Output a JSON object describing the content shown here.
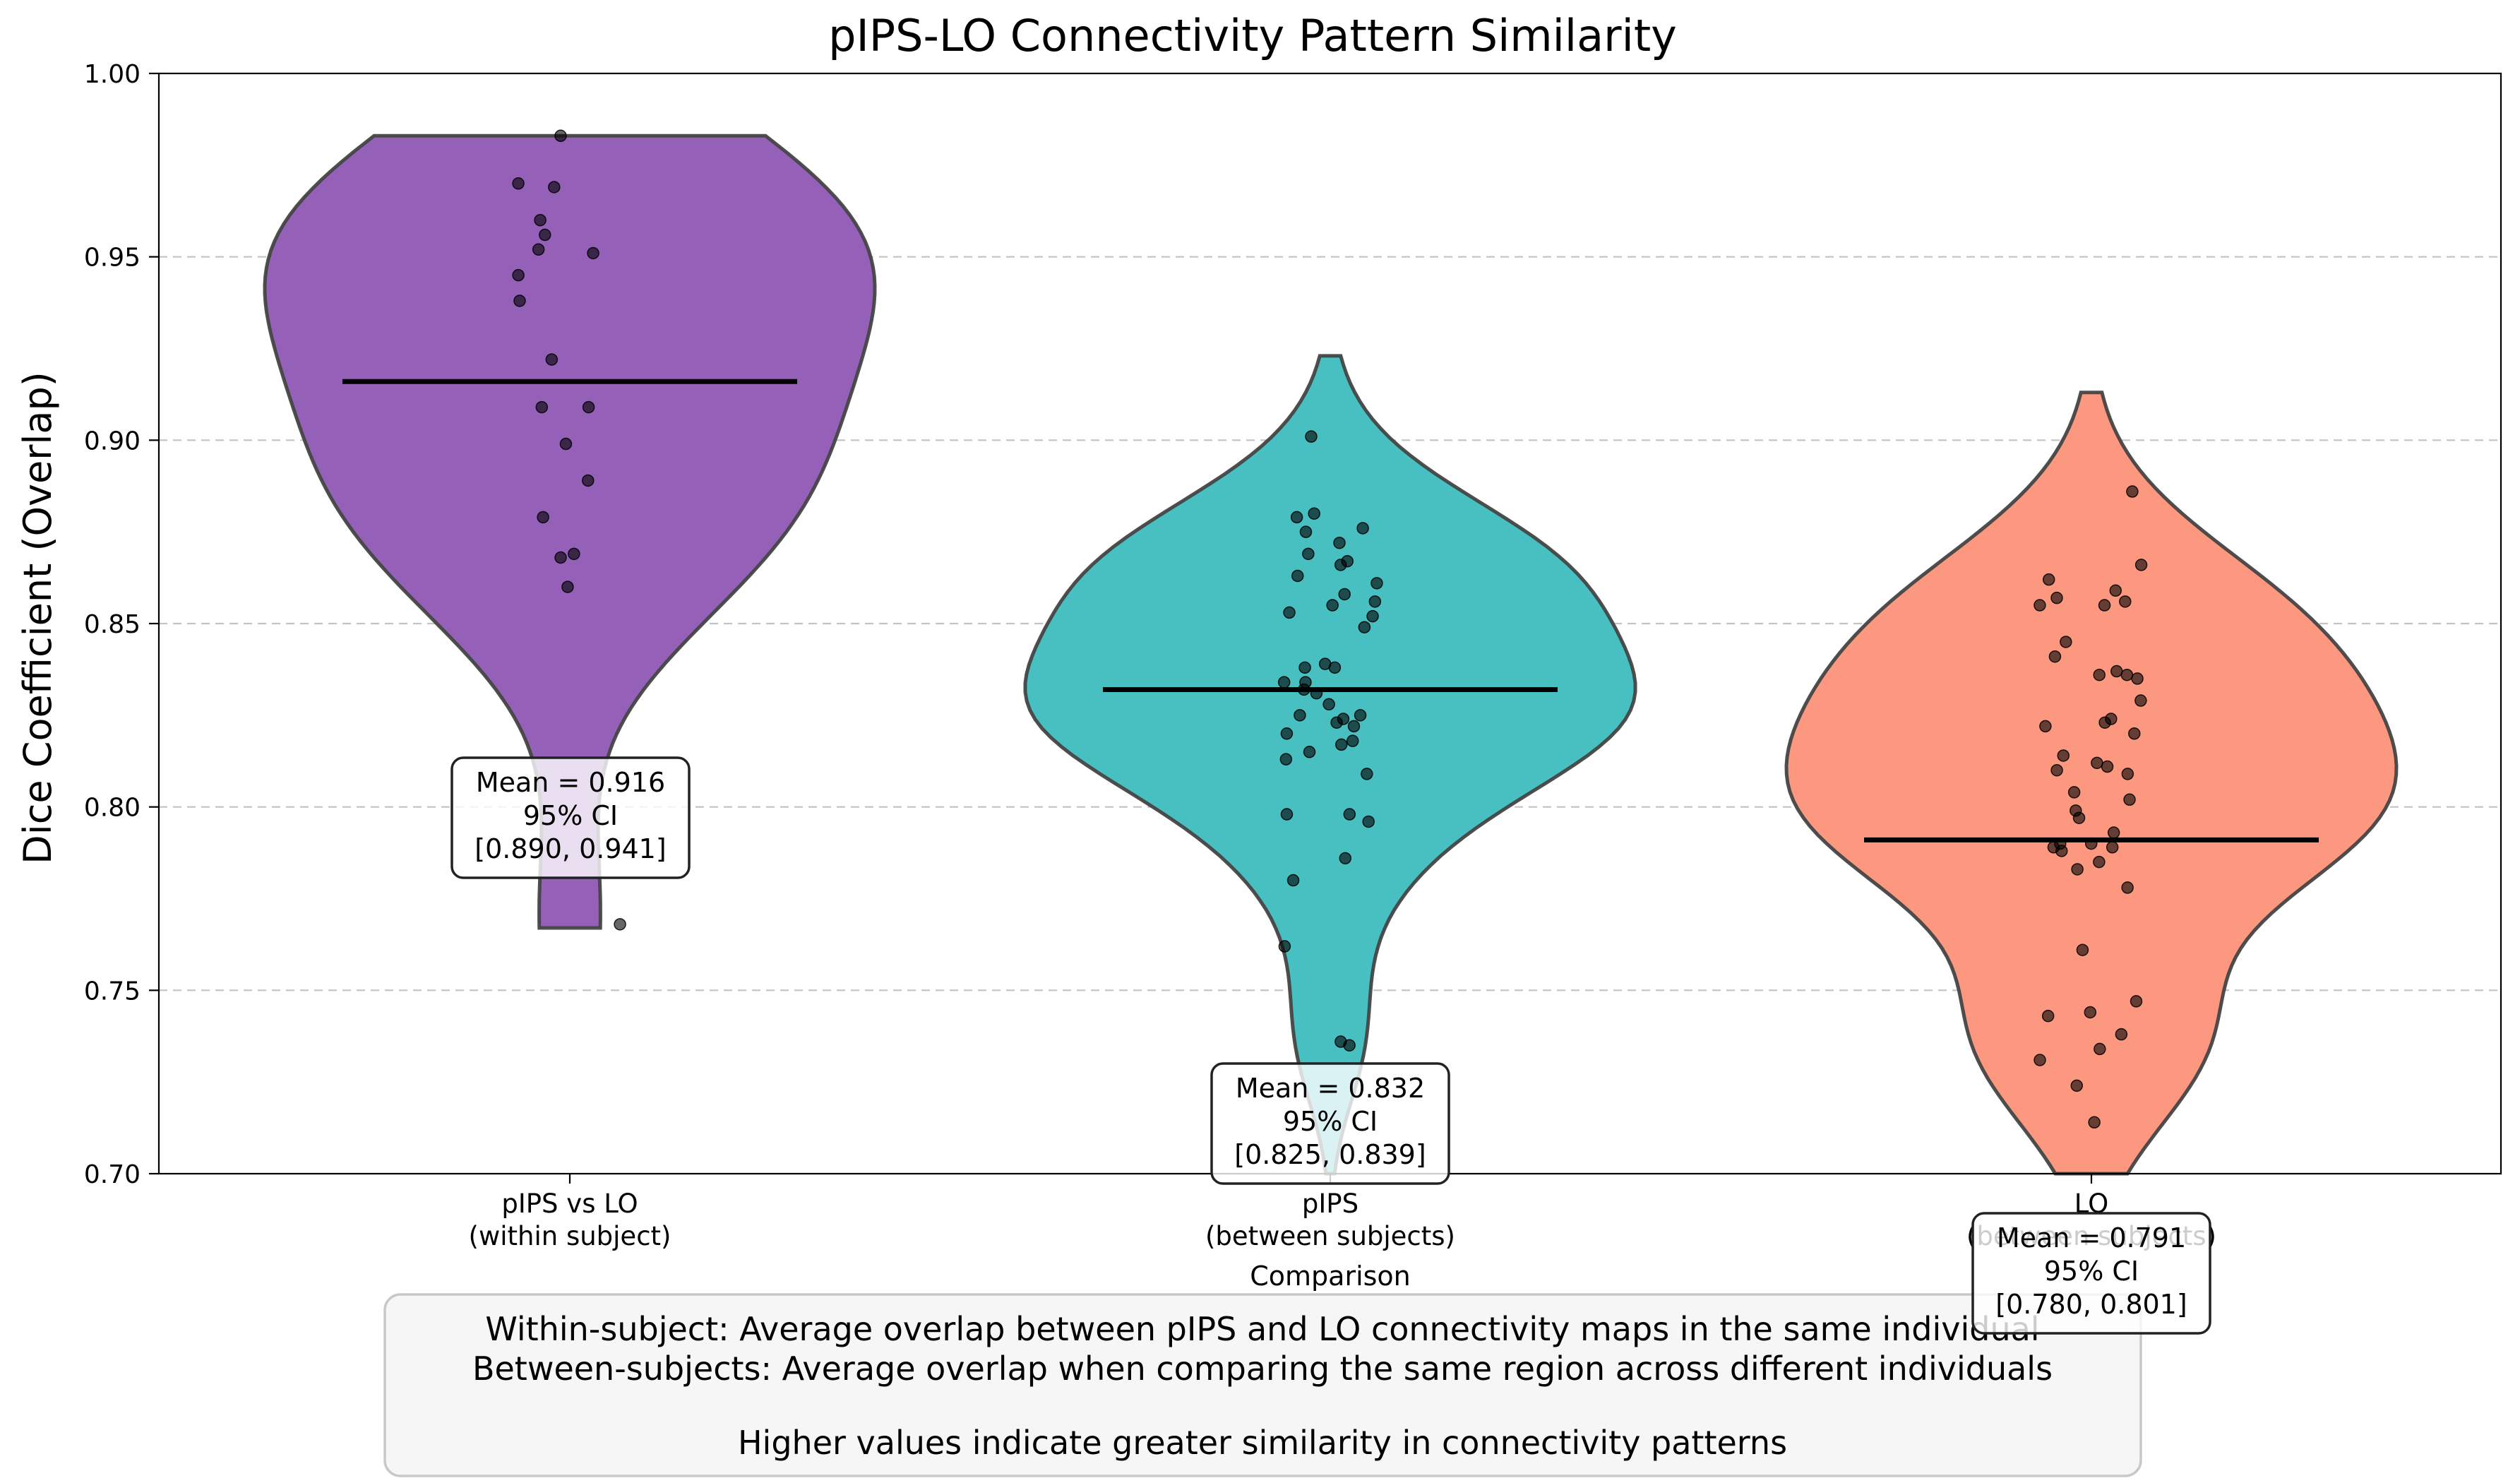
{
  "chart_data": {
    "type": "violin",
    "title": "pIPS-LO Connectivity Pattern Similarity",
    "xlabel": "Comparison",
    "ylabel": "Dice Coefficient (Overlap)",
    "ylim": [
      0.7,
      1.0
    ],
    "yticks": [
      "0.70",
      "0.75",
      "0.80",
      "0.85",
      "0.90",
      "0.95",
      "1.00"
    ],
    "grid": "y-dashed",
    "categories": [
      {
        "line1": "pIPS vs LO",
        "line2": "(within subject)",
        "color": "#9460b8",
        "mean": 0.916,
        "range": [
          0.767,
          0.983
        ],
        "annotation": {
          "line1": "Mean = 0.916",
          "line2": "95% CI",
          "line3": "[0.890, 0.941]"
        },
        "points": [
          0.983,
          0.97,
          0.969,
          0.96,
          0.956,
          0.952,
          0.951,
          0.945,
          0.938,
          0.922,
          0.909,
          0.909,
          0.899,
          0.889,
          0.879,
          0.869,
          0.868,
          0.86,
          0.768
        ]
      },
      {
        "line1": "pIPS",
        "line2": "(between subjects)",
        "color": "#48bfc0",
        "mean": 0.832,
        "range": [
          0.7,
          0.923
        ],
        "annotation": {
          "line1": "Mean = 0.832",
          "line2": "95% CI",
          "line3": "[0.825, 0.839]"
        },
        "points": [
          0.901,
          0.88,
          0.879,
          0.876,
          0.875,
          0.872,
          0.869,
          0.867,
          0.866,
          0.863,
          0.861,
          0.858,
          0.856,
          0.855,
          0.853,
          0.852,
          0.849,
          0.839,
          0.838,
          0.838,
          0.834,
          0.834,
          0.832,
          0.831,
          0.828,
          0.825,
          0.825,
          0.824,
          0.823,
          0.822,
          0.82,
          0.818,
          0.817,
          0.815,
          0.813,
          0.809,
          0.798,
          0.798,
          0.796,
          0.786,
          0.78,
          0.762,
          0.736,
          0.735
        ]
      },
      {
        "line1": "LO",
        "line2": "(between subjects)",
        "color": "#fc9880",
        "mean": 0.791,
        "range": [
          0.7,
          0.913
        ],
        "annotation": {
          "line1": "Mean = 0.791",
          "line2": "95% CI",
          "line3": "[0.780, 0.801]"
        },
        "points": [
          0.886,
          0.866,
          0.862,
          0.859,
          0.857,
          0.856,
          0.855,
          0.855,
          0.845,
          0.841,
          0.837,
          0.836,
          0.836,
          0.835,
          0.829,
          0.824,
          0.823,
          0.822,
          0.82,
          0.814,
          0.812,
          0.811,
          0.81,
          0.809,
          0.804,
          0.802,
          0.799,
          0.797,
          0.793,
          0.79,
          0.79,
          0.789,
          0.789,
          0.788,
          0.785,
          0.783,
          0.778,
          0.761,
          0.747,
          0.744,
          0.743,
          0.738,
          0.734,
          0.731,
          0.724,
          0.714
        ]
      }
    ]
  },
  "note": {
    "line1": "Within-subject: Average overlap between pIPS and LO connectivity maps in the same individual",
    "line2": "Between-subjects: Average overlap when comparing the same region across different individuals",
    "line3": "Higher values indicate greater similarity in connectivity patterns"
  }
}
